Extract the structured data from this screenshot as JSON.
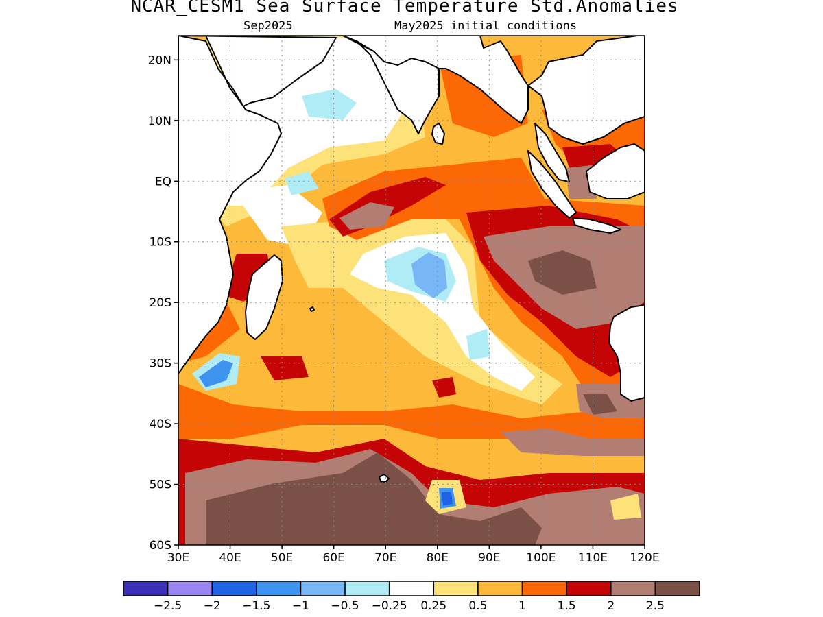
{
  "header": {
    "title": "NCAR_CESM1 Sea Surface Temperature Std.Anomalies",
    "target_month": "Sep2025",
    "init_conditions": "May2025 initial conditions"
  },
  "map": {
    "lon_range": [
      30,
      120
    ],
    "lat_range": [
      -60,
      24
    ],
    "lat_ticks": [
      {
        "value": 20,
        "label": "20N"
      },
      {
        "value": 10,
        "label": "10N"
      },
      {
        "value": 0,
        "label": "EQ"
      },
      {
        "value": -10,
        "label": "10S"
      },
      {
        "value": -20,
        "label": "20S"
      },
      {
        "value": -30,
        "label": "30S"
      },
      {
        "value": -40,
        "label": "40S"
      },
      {
        "value": -50,
        "label": "50S"
      },
      {
        "value": -60,
        "label": "60S"
      }
    ],
    "lon_ticks": [
      {
        "value": 30,
        "label": "30E"
      },
      {
        "value": 40,
        "label": "40E"
      },
      {
        "value": 50,
        "label": "50E"
      },
      {
        "value": 60,
        "label": "60E"
      },
      {
        "value": 70,
        "label": "70E"
      },
      {
        "value": 80,
        "label": "80E"
      },
      {
        "value": 90,
        "label": "90E"
      },
      {
        "value": 100,
        "label": "100E"
      },
      {
        "value": 110,
        "label": "110E"
      },
      {
        "value": 120,
        "label": "120E"
      }
    ],
    "grid": "dotted"
  },
  "colorbar": {
    "colors": [
      "#3c2fb8",
      "#9a86f0",
      "#1f62e4",
      "#3f93f0",
      "#78b6f6",
      "#b0ecf6",
      "#ffffff",
      "#fde27a",
      "#fdba3a",
      "#fb6805",
      "#c40405",
      "#b27e73",
      "#7b5047"
    ],
    "labels": [
      "-2.5",
      "-2",
      "-1.5",
      "-1",
      "-0.5",
      "-0.25",
      "0.25",
      "0.5",
      "1",
      "1.5",
      "2",
      "2.5"
    ]
  }
}
